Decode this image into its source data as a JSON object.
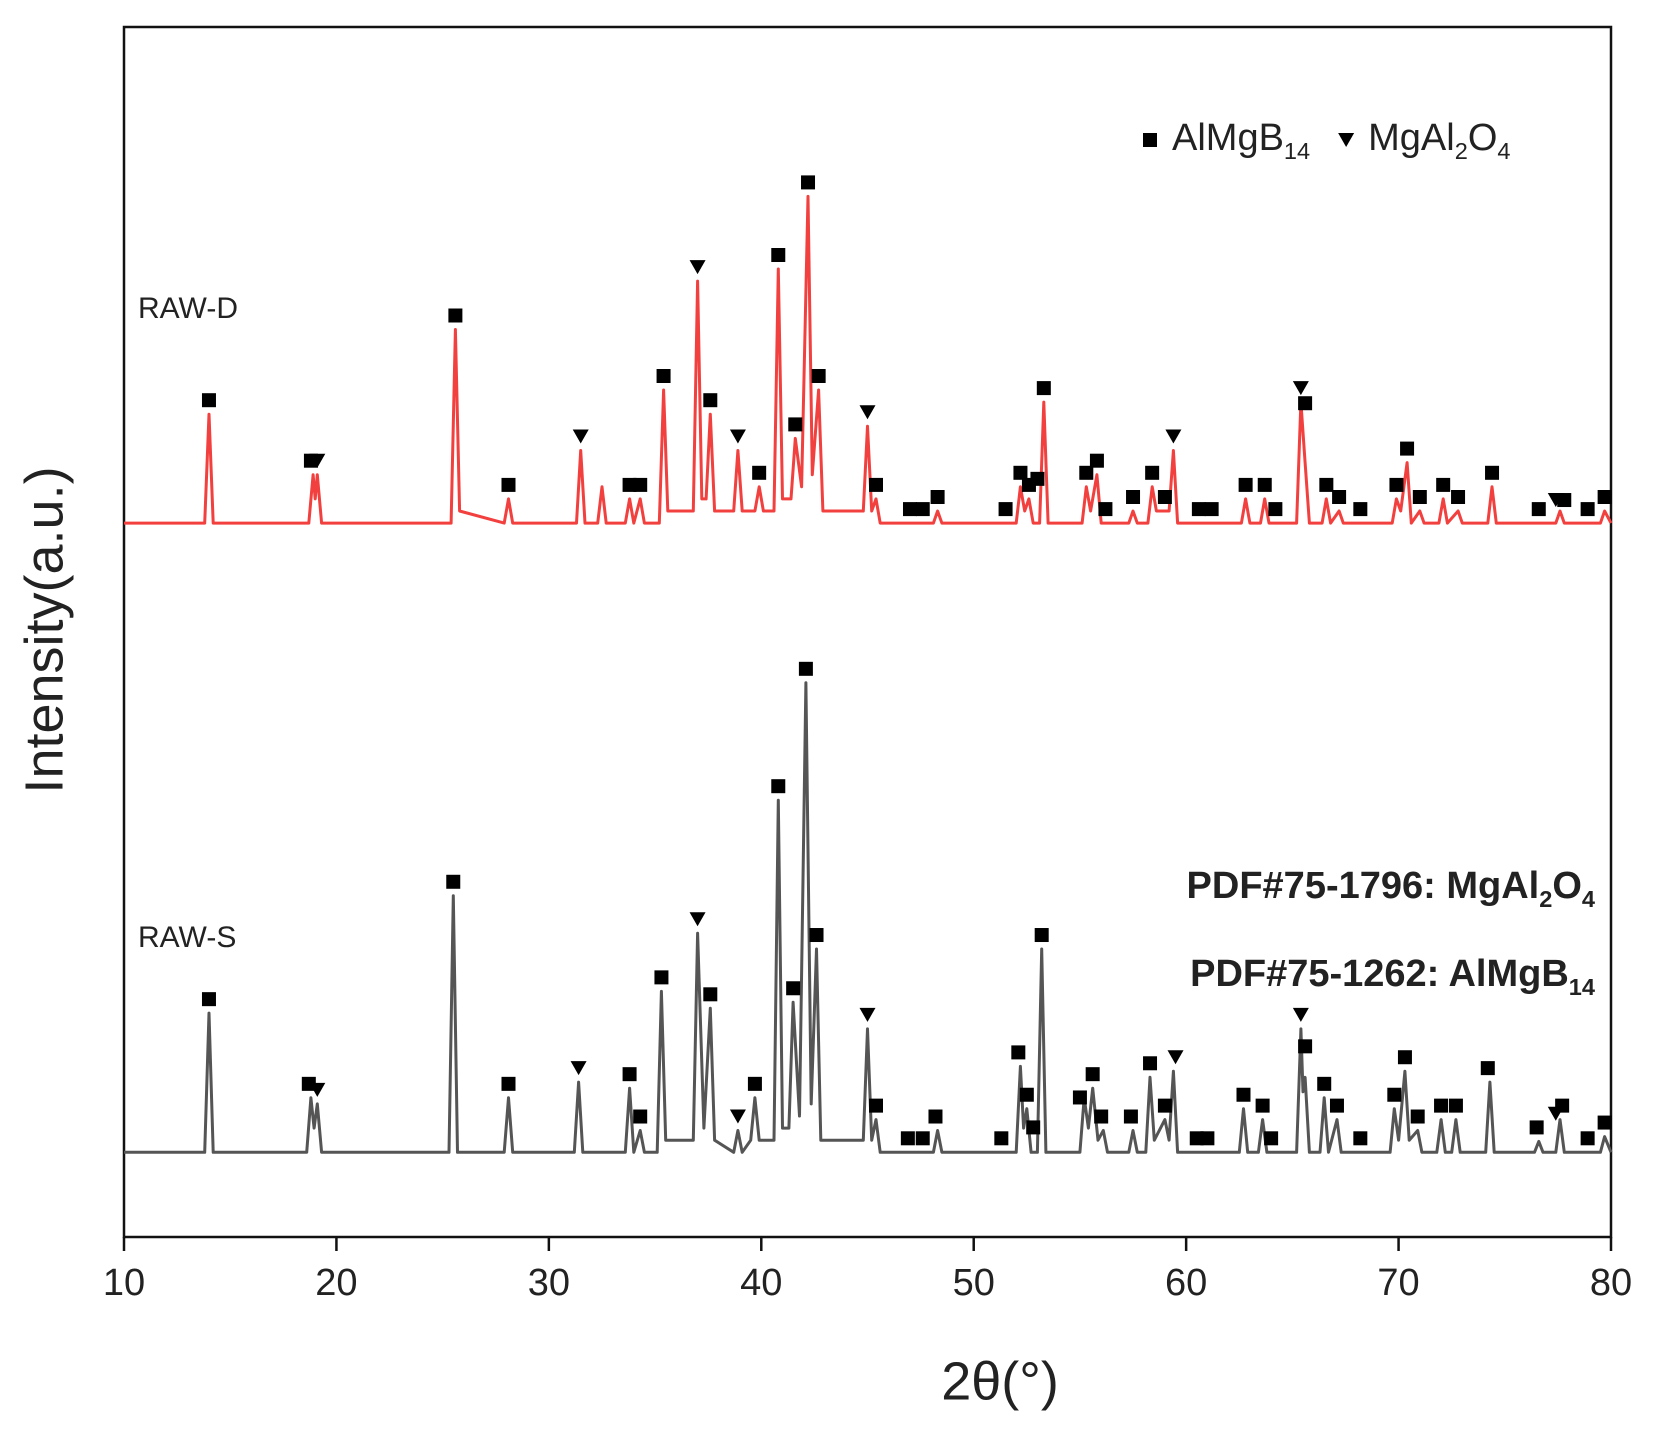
{
  "chart_data": {
    "type": "line",
    "x_label": "2θ(°)",
    "y_label": "Intensity(a.u.)",
    "xlim": [
      10,
      80
    ],
    "xticks": [
      10,
      20,
      30,
      40,
      50,
      60,
      70,
      80
    ],
    "ylim": [
      0,
      100
    ],
    "legend": [
      {
        "marker": "square",
        "label": "AlMgB14"
      },
      {
        "marker": "triangle",
        "label": "MgAl2O4"
      }
    ],
    "annotations": [
      "PDF#75-1796: MgAl2O4",
      "PDF#75-1262: AlMgB14"
    ],
    "series": [
      {
        "name": "RAW-D",
        "color": "#f2403f",
        "x": [
          10,
          13.8,
          14.0,
          14.2,
          18.7,
          18.9,
          19.0,
          19.1,
          19.3,
          25.4,
          25.6,
          25.8,
          27.9,
          28.1,
          28.3,
          31.3,
          31.5,
          31.7,
          32.3,
          32.5,
          32.7,
          33.6,
          33.8,
          34.0,
          34.3,
          34.5,
          35.2,
          35.4,
          35.6,
          36.8,
          37.0,
          37.2,
          37.4,
          37.6,
          37.8,
          38.7,
          38.9,
          39.1,
          39.7,
          39.9,
          40.1,
          40.6,
          40.8,
          41.0,
          41.4,
          41.6,
          41.9,
          42.2,
          42.4,
          42.7,
          42.9,
          44.8,
          45.0,
          45.2,
          45.4,
          45.6,
          48.1,
          48.3,
          48.5,
          52.0,
          52.2,
          52.4,
          52.6,
          52.8,
          53.1,
          53.3,
          53.5,
          55.1,
          55.3,
          55.5,
          55.8,
          56.0,
          57.3,
          57.5,
          57.7,
          58.2,
          58.4,
          58.6,
          59.2,
          59.4,
          59.6,
          62.6,
          62.8,
          63.0,
          63.5,
          63.7,
          63.9,
          65.2,
          65.4,
          65.6,
          65.8,
          66.4,
          66.6,
          66.8,
          67.2,
          67.4,
          69.7,
          69.9,
          70.1,
          70.4,
          70.6,
          71.0,
          71.2,
          71.9,
          72.1,
          72.3,
          72.8,
          73.0,
          74.2,
          74.4,
          74.6,
          77.4,
          77.6,
          77.8,
          79.5,
          79.7,
          80
        ],
        "values": [
          59,
          59,
          68,
          59,
          59,
          63,
          61,
          63,
          59,
          59,
          75,
          60,
          59,
          61,
          59,
          59,
          65,
          59,
          59,
          62,
          59,
          59,
          61,
          59,
          61,
          59,
          59,
          70,
          60,
          60,
          79,
          61,
          61,
          68,
          60,
          60,
          65,
          60,
          60,
          62,
          60,
          60,
          80,
          61,
          61,
          66,
          62,
          86,
          63,
          70,
          60,
          60,
          67,
          60,
          61,
          59,
          59,
          60,
          59,
          59,
          62,
          60,
          61,
          59,
          59,
          69,
          59,
          59,
          62,
          60,
          63,
          59,
          59,
          60,
          59,
          59,
          62,
          60,
          60,
          65,
          59,
          59,
          61,
          59,
          59,
          61,
          59,
          59,
          69,
          64,
          59,
          59,
          61,
          59,
          60,
          59,
          59,
          61,
          60,
          64,
          59,
          60,
          59,
          59,
          61,
          59,
          60,
          59,
          59,
          62,
          59,
          59,
          60,
          59,
          59,
          60,
          59
        ],
        "markers": {
          "square": [
            14.0,
            18.8,
            25.6,
            28.1,
            33.8,
            34.3,
            35.4,
            37.6,
            39.9,
            40.8,
            41.6,
            42.2,
            42.7,
            45.4,
            47.0,
            47.6,
            48.3,
            51.5,
            52.2,
            52.6,
            53.0,
            53.3,
            55.3,
            55.8,
            56.2,
            57.5,
            58.4,
            59.0,
            60.6,
            61.2,
            62.8,
            63.7,
            64.2,
            65.6,
            66.6,
            67.2,
            68.2,
            69.9,
            70.4,
            71.0,
            72.1,
            72.8,
            74.4,
            76.6,
            77.8,
            78.9,
            79.7
          ],
          "triangle": [
            19.1,
            31.5,
            37.0,
            38.9,
            45.0,
            59.4,
            65.4,
            77.4
          ]
        }
      },
      {
        "name": "RAW-S",
        "color": "#555555",
        "x": [
          10,
          13.8,
          14.0,
          14.2,
          18.6,
          18.8,
          18.95,
          19.1,
          19.3,
          25.3,
          25.5,
          25.7,
          27.9,
          28.1,
          28.3,
          31.2,
          31.4,
          31.6,
          33.6,
          33.8,
          34.0,
          34.3,
          34.5,
          35.1,
          35.3,
          35.5,
          36.8,
          37.0,
          37.3,
          37.6,
          37.8,
          38.7,
          38.9,
          39.1,
          39.5,
          39.7,
          39.9,
          40.6,
          40.8,
          41.0,
          41.3,
          41.5,
          41.8,
          42.1,
          42.35,
          42.6,
          42.8,
          44.8,
          45.0,
          45.2,
          45.4,
          45.6,
          48.1,
          48.3,
          48.5,
          52.0,
          52.2,
          52.35,
          52.5,
          52.7,
          53.0,
          53.2,
          53.4,
          55.0,
          55.2,
          55.4,
          55.6,
          55.85,
          56.1,
          56.3,
          57.3,
          57.5,
          57.7,
          58.1,
          58.3,
          58.5,
          59.0,
          59.2,
          59.4,
          59.6,
          62.5,
          62.7,
          62.9,
          63.4,
          63.6,
          63.8,
          65.2,
          65.4,
          65.5,
          65.6,
          65.8,
          66.3,
          66.5,
          66.7,
          67.1,
          67.3,
          69.6,
          69.8,
          70.0,
          70.3,
          70.5,
          70.9,
          71.1,
          71.8,
          72.0,
          72.2,
          72.5,
          72.7,
          72.9,
          74.1,
          74.3,
          74.5,
          76.4,
          76.6,
          76.8,
          77.4,
          77.6,
          77.8,
          79.5,
          79.7,
          80
        ],
        "values": [
          7,
          7,
          18.5,
          7,
          7,
          11.5,
          9,
          11,
          7,
          7,
          28.2,
          7,
          7,
          11.5,
          7,
          7,
          12.8,
          7,
          7,
          12.3,
          7,
          8.8,
          7,
          7,
          20.3,
          8,
          8,
          25.1,
          9,
          18.9,
          8,
          7,
          8.8,
          7,
          8,
          11.5,
          8,
          8,
          36.1,
          9,
          9,
          19.4,
          10,
          45.8,
          11,
          23.8,
          8,
          8,
          17.2,
          8,
          9.7,
          7,
          7,
          8.8,
          7,
          7,
          14.1,
          9,
          10.6,
          7,
          7,
          23.8,
          7,
          7,
          11.5,
          9,
          12.3,
          8,
          8.8,
          7,
          7,
          8.8,
          7,
          7,
          13.2,
          8,
          9.7,
          8,
          13.7,
          7,
          7,
          10.6,
          7,
          7,
          9.7,
          7,
          7,
          17.2,
          12,
          13.2,
          7,
          7,
          11.5,
          7,
          9.7,
          7,
          7,
          10.6,
          8,
          13.7,
          8,
          8.8,
          7,
          7,
          9.7,
          7,
          7,
          9.7,
          7,
          7,
          12.8,
          7,
          7,
          7.9,
          7,
          7,
          9.7,
          7,
          7,
          8.3,
          7
        ],
        "markers": {
          "square": [
            14.0,
            18.7,
            25.5,
            28.1,
            33.8,
            34.3,
            35.3,
            37.6,
            39.7,
            40.8,
            41.5,
            42.1,
            42.6,
            45.4,
            46.9,
            47.6,
            48.2,
            51.3,
            52.1,
            52.5,
            52.8,
            53.2,
            55.0,
            55.6,
            56.0,
            57.4,
            58.3,
            59.0,
            60.5,
            61.0,
            62.7,
            63.6,
            64.0,
            65.6,
            66.5,
            67.1,
            68.2,
            69.8,
            70.3,
            70.9,
            72.0,
            72.7,
            74.2,
            76.5,
            77.7,
            78.9,
            79.7
          ],
          "triangle": [
            19.1,
            31.4,
            37.0,
            38.9,
            45.0,
            59.5,
            65.4,
            77.4
          ]
        }
      }
    ]
  }
}
